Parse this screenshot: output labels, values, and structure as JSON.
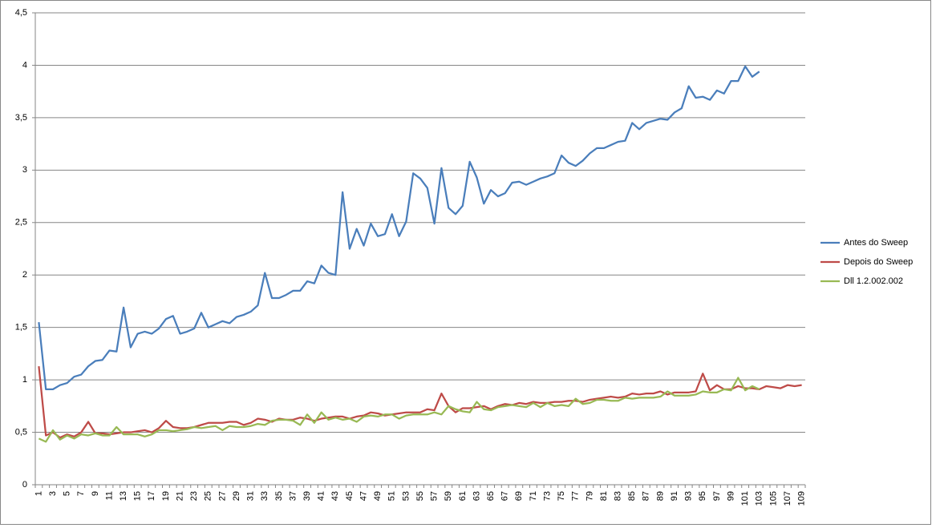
{
  "chart_data": {
    "type": "line",
    "categories": [
      1,
      null,
      3,
      null,
      5,
      null,
      7,
      null,
      9,
      null,
      11,
      null,
      13,
      null,
      15,
      null,
      17,
      null,
      19,
      null,
      21,
      null,
      23,
      null,
      25,
      null,
      27,
      null,
      29,
      null,
      31,
      null,
      33,
      null,
      35,
      null,
      37,
      null,
      39,
      null,
      41,
      null,
      43,
      null,
      45,
      null,
      47,
      null,
      49,
      null,
      51,
      null,
      53,
      null,
      55,
      null,
      57,
      null,
      59,
      null,
      61,
      null,
      63,
      null,
      65,
      null,
      67,
      null,
      69,
      null,
      71,
      null,
      73,
      null,
      75,
      null,
      77,
      null,
      79,
      null,
      81,
      null,
      83,
      null,
      85,
      null,
      87,
      null,
      89,
      null,
      91,
      null,
      93,
      null,
      95,
      null,
      97,
      null,
      99,
      null,
      101,
      null,
      103,
      null,
      105,
      null,
      107,
      null,
      109
    ],
    "series": [
      {
        "name": "Antes do Sweep",
        "color": "#4a7ebb",
        "values": [
          1.55,
          0.91,
          0.91,
          0.95,
          0.97,
          1.03,
          1.05,
          1.13,
          1.18,
          1.19,
          1.28,
          1.27,
          1.69,
          1.31,
          1.44,
          1.46,
          1.44,
          1.49,
          1.58,
          1.61,
          1.44,
          1.46,
          1.49,
          1.64,
          1.5,
          1.53,
          1.56,
          1.54,
          1.6,
          1.62,
          1.65,
          1.71,
          2.02,
          1.78,
          1.78,
          1.81,
          1.85,
          1.85,
          1.94,
          1.92,
          2.09,
          2.02,
          2.0,
          2.79,
          2.25,
          2.44,
          2.28,
          2.49,
          2.37,
          2.39,
          2.58,
          2.37,
          2.51,
          2.97,
          2.92,
          2.83,
          2.49,
          3.02,
          2.64,
          2.58,
          2.66,
          3.08,
          2.93,
          2.68,
          2.81,
          2.75,
          2.78,
          2.88,
          2.89,
          2.86,
          2.89,
          2.92,
          2.94,
          2.97,
          3.14,
          3.07,
          3.04,
          3.09,
          3.16,
          3.21,
          3.21,
          3.24,
          3.27,
          3.28,
          3.45,
          3.39,
          3.45,
          3.47,
          3.49,
          3.48,
          3.55,
          3.59,
          3.8,
          3.69,
          3.7,
          3.67,
          3.76,
          3.73,
          3.85,
          3.85,
          3.99,
          3.89,
          3.94,
          null,
          null,
          null,
          null,
          null,
          null
        ]
      },
      {
        "name": "Depois do Sweep",
        "color": "#be4b48",
        "values": [
          1.13,
          0.47,
          0.5,
          0.45,
          0.48,
          0.46,
          0.5,
          0.6,
          0.49,
          0.49,
          0.48,
          0.49,
          0.5,
          0.5,
          0.51,
          0.52,
          0.5,
          0.54,
          0.61,
          0.55,
          0.54,
          0.54,
          0.55,
          0.57,
          0.59,
          0.59,
          0.59,
          0.6,
          0.6,
          0.57,
          0.59,
          0.63,
          0.62,
          0.6,
          0.63,
          0.62,
          0.62,
          0.64,
          0.63,
          0.61,
          0.63,
          0.64,
          0.65,
          0.65,
          0.63,
          0.65,
          0.66,
          0.69,
          0.68,
          0.66,
          0.67,
          0.68,
          0.69,
          0.69,
          0.69,
          0.72,
          0.71,
          0.87,
          0.75,
          0.69,
          0.73,
          0.73,
          0.74,
          0.75,
          0.72,
          0.75,
          0.77,
          0.76,
          0.78,
          0.77,
          0.79,
          0.78,
          0.78,
          0.79,
          0.79,
          0.8,
          0.8,
          0.79,
          0.81,
          0.82,
          0.83,
          0.84,
          0.83,
          0.84,
          0.87,
          0.86,
          0.87,
          0.87,
          0.89,
          0.86,
          0.88,
          0.88,
          0.88,
          0.89,
          1.06,
          0.9,
          0.95,
          0.91,
          0.91,
          0.94,
          0.92,
          0.92,
          0.91,
          0.94,
          0.93,
          0.92,
          0.95,
          0.94,
          0.95
        ]
      },
      {
        "name": "Dll 1.2.002.002",
        "color": "#98b954",
        "values": [
          0.44,
          0.41,
          0.52,
          0.43,
          0.47,
          0.44,
          0.48,
          0.47,
          0.49,
          0.47,
          0.47,
          0.55,
          0.48,
          0.48,
          0.48,
          0.46,
          0.48,
          0.52,
          0.52,
          0.51,
          0.52,
          0.53,
          0.55,
          0.54,
          0.55,
          0.56,
          0.52,
          0.56,
          0.55,
          0.55,
          0.56,
          0.58,
          0.57,
          0.61,
          0.62,
          0.62,
          0.61,
          0.57,
          0.67,
          0.59,
          0.69,
          0.62,
          0.64,
          0.62,
          0.63,
          0.6,
          0.65,
          0.66,
          0.65,
          0.67,
          0.67,
          0.63,
          0.66,
          0.67,
          0.67,
          0.67,
          0.69,
          0.67,
          0.75,
          0.72,
          0.7,
          0.69,
          0.79,
          0.72,
          0.71,
          0.74,
          0.75,
          0.76,
          0.75,
          0.74,
          0.78,
          0.74,
          0.78,
          0.75,
          0.76,
          0.75,
          0.82,
          0.77,
          0.78,
          0.81,
          0.81,
          0.8,
          0.8,
          0.83,
          0.82,
          0.83,
          0.83,
          0.83,
          0.84,
          0.89,
          0.85,
          0.85,
          0.85,
          0.86,
          0.89,
          0.88,
          0.88,
          0.91,
          0.9,
          1.02,
          0.9,
          0.94,
          0.91,
          null,
          null,
          null,
          null,
          null,
          null
        ]
      }
    ],
    "ylim": [
      0,
      4.5
    ],
    "yticks": [
      0,
      {
        "value": 0.5,
        "label": "0,5"
      },
      1,
      {
        "value": 1.5,
        "label": "1,5"
      },
      2,
      {
        "value": 2.5,
        "label": "2,5"
      },
      3,
      {
        "value": 3.5,
        "label": "3,5"
      },
      4,
      {
        "value": 4.5,
        "label": "4,5"
      }
    ],
    "grid": true,
    "legend": "right"
  }
}
